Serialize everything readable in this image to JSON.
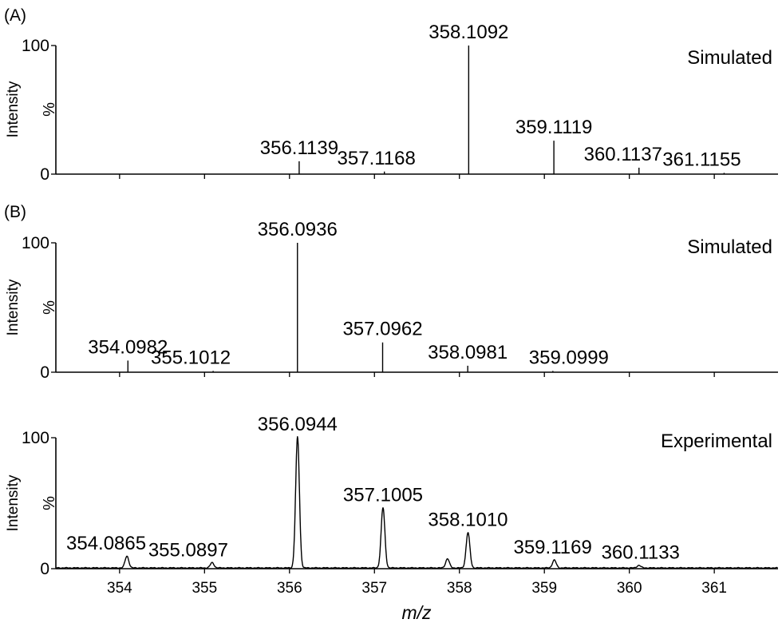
{
  "x_axis": {
    "label": "m/z",
    "range": [
      353.25,
      361.75
    ],
    "ticks": [
      354,
      355,
      356,
      357,
      358,
      359,
      360,
      361
    ],
    "tick_labels": [
      "354",
      "355",
      "356",
      "357",
      "358",
      "359",
      "360",
      "361"
    ]
  },
  "chart_data": [
    {
      "type": "bar",
      "panel_label": "(A)",
      "title": "Simulated",
      "ylabel": "Intensity",
      "yunit": "%",
      "ylim": [
        0,
        100
      ],
      "yticks": [
        "0",
        "100"
      ],
      "peaks": [
        {
          "mz": 356.1139,
          "intensity": 10,
          "label": "356.1139"
        },
        {
          "mz": 357.1168,
          "intensity": 2,
          "label": "357.1168"
        },
        {
          "mz": 358.1092,
          "intensity": 100,
          "label": "358.1092"
        },
        {
          "mz": 359.1119,
          "intensity": 26,
          "label": "359.1119"
        },
        {
          "mz": 360.1137,
          "intensity": 5,
          "label": "360.1137"
        },
        {
          "mz": 361.1155,
          "intensity": 1,
          "label": "361.1155"
        }
      ]
    },
    {
      "type": "bar",
      "panel_label": "(B)",
      "title": "Simulated",
      "ylabel": "Intensity",
      "yunit": "%",
      "ylim": [
        0,
        100
      ],
      "yticks": [
        "0",
        "100"
      ],
      "peaks": [
        {
          "mz": 354.0982,
          "intensity": 9,
          "label": "354.0982"
        },
        {
          "mz": 355.1012,
          "intensity": 1,
          "label": "355.1012"
        },
        {
          "mz": 356.0936,
          "intensity": 100,
          "label": "356.0936"
        },
        {
          "mz": 357.0962,
          "intensity": 23,
          "label": "357.0962"
        },
        {
          "mz": 358.0981,
          "intensity": 5,
          "label": "358.0981"
        },
        {
          "mz": 359.0999,
          "intensity": 1,
          "label": "359.0999"
        }
      ]
    },
    {
      "type": "line",
      "panel_label": "",
      "title": "Experimental",
      "ylabel": "Intensity",
      "yunit": "%",
      "ylim": [
        0,
        100
      ],
      "yticks": [
        "0",
        "100"
      ],
      "peaks": [
        {
          "mz": 354.0865,
          "intensity": 9,
          "label": "354.0865"
        },
        {
          "mz": 355.0897,
          "intensity": 4,
          "label": "355.0897"
        },
        {
          "mz": 356.0944,
          "intensity": 100,
          "label": "356.0944"
        },
        {
          "mz": 357.1005,
          "intensity": 46,
          "label": "357.1005"
        },
        {
          "mz": 357.86,
          "intensity": 7,
          "label": ""
        },
        {
          "mz": 358.101,
          "intensity": 27,
          "label": "358.1010"
        },
        {
          "mz": 359.1169,
          "intensity": 6,
          "label": "359.1169"
        },
        {
          "mz": 360.1133,
          "intensity": 2,
          "label": "360.1133"
        }
      ]
    }
  ]
}
